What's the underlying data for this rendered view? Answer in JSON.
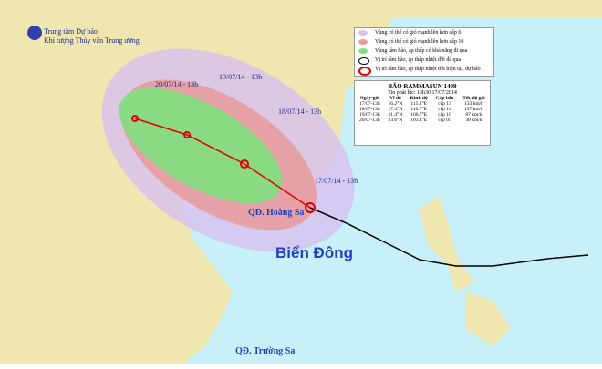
{
  "agency": {
    "line1": "Trung tâm Dự báo",
    "line2": "Khí tượng Thủy văn Trung ương"
  },
  "legend": [
    {
      "label": "Vùng có thể có gió mạnh lên hơn cấp 6",
      "color": "#d8c0f0"
    },
    {
      "label": "Vùng có thể có gió mạnh lên hơn cấp 10",
      "color": "#e89a9a"
    },
    {
      "label": "Vùng tâm bão, áp thấp có khả năng đi qua",
      "color": "#80e080"
    },
    {
      "label": "Vị trí tâm bão, áp thấp nhiệt đới đã qua",
      "color": "#000000"
    },
    {
      "label": "Vị trí tâm bão, áp thấp nhiệt đới hiện tại, dự báo",
      "color": "#e00000"
    }
  ],
  "storm": {
    "title": "BÃO RAMMASUN 1409",
    "issued": "Tin phát lúc: 16h30 17/07/2014",
    "columns": [
      "Ngày-giờ",
      "Vĩ độ",
      "Kinh độ",
      "Cấp bão",
      "Tốc độ gió"
    ],
    "rows": [
      [
        "17/07-13h",
        "16.2°N",
        "115.1°E",
        "cấp 13",
        "133 km/h"
      ],
      [
        "18/07-13h",
        "17.4°N",
        "110.7°E",
        "cấp 14",
        "157 km/h"
      ],
      [
        "19/07-13h",
        "21.4°N",
        "106.7°E",
        "cấp 10",
        "87 km/h"
      ],
      [
        "20/07-13h",
        "23.6°N",
        "103.4°E",
        "cấp 05",
        "38 km/h"
      ]
    ]
  },
  "map_labels": {
    "t1": "20/07/14 - 13h",
    "t2": "19/07/14 - 13h",
    "t3": "18/07/14 - 13h",
    "t4": "17/07/14 - 13h",
    "hoangsa": "QĐ. Hoàng Sa",
    "biendong": "Biển Đông",
    "truongsa": "QĐ. Trường Sa"
  }
}
